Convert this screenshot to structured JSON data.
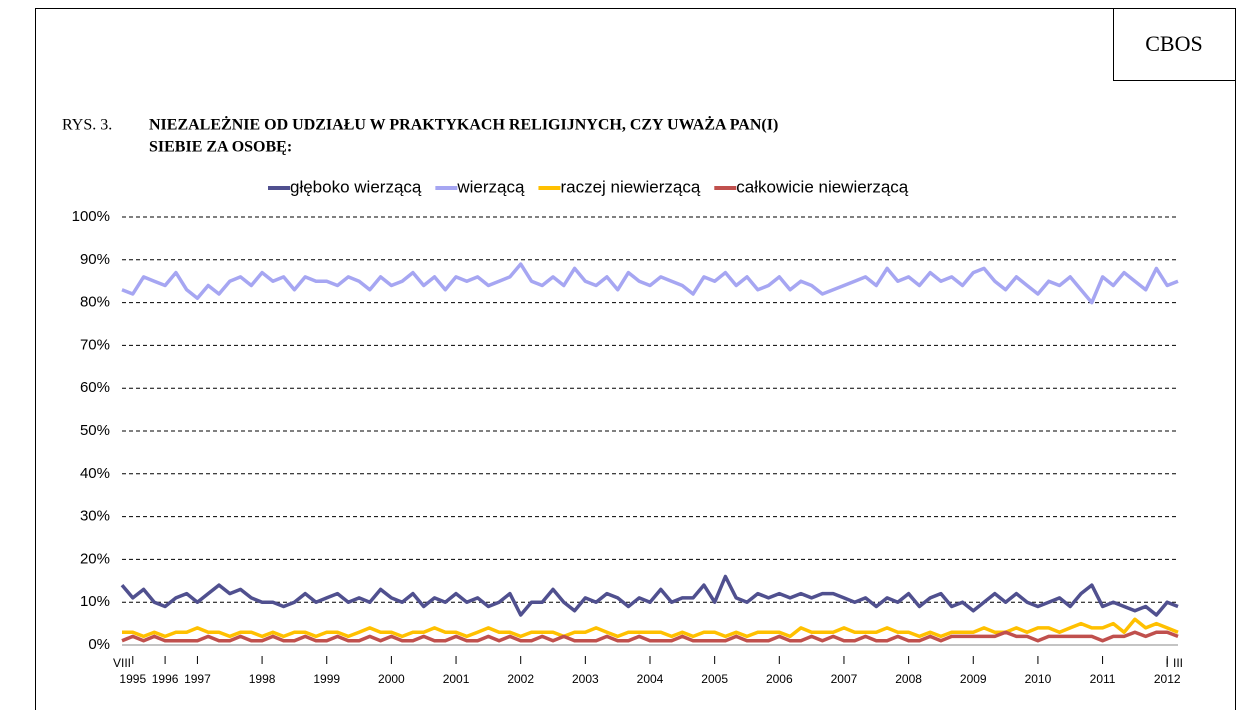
{
  "header": {
    "badge": "CBOS",
    "figure_number": "RYS. 3.",
    "title_line1": "NIEZALEŻNIE OD UDZIAŁU W PRAKTYKACH RELIGIJNYCH, CZY UWAŻA PAN(I)",
    "title_line2": "SIEBIE ZA OSOBĘ:"
  },
  "chart_data": {
    "type": "line",
    "categories": [
      null,
      "1995",
      null,
      null,
      "1996",
      null,
      null,
      "1997",
      null,
      null,
      null,
      null,
      null,
      "1998",
      null,
      null,
      null,
      null,
      null,
      "1999",
      null,
      null,
      null,
      null,
      null,
      "2000",
      null,
      null,
      null,
      null,
      null,
      "2001",
      null,
      null,
      null,
      null,
      null,
      "2002",
      null,
      null,
      null,
      null,
      null,
      "2003",
      null,
      null,
      null,
      null,
      null,
      "2004",
      null,
      null,
      null,
      null,
      null,
      "2005",
      null,
      null,
      null,
      null,
      null,
      "2006",
      null,
      null,
      null,
      null,
      null,
      "2007",
      null,
      null,
      null,
      null,
      null,
      "2008",
      null,
      null,
      null,
      null,
      null,
      "2009",
      null,
      null,
      null,
      null,
      null,
      "2010",
      null,
      null,
      null,
      null,
      null,
      "2011",
      null,
      null,
      null,
      null,
      null,
      "2012",
      null
    ],
    "month_labels": [
      "VIII",
      null,
      null,
      null,
      null,
      null,
      null,
      null,
      null,
      null,
      null,
      null,
      null,
      null,
      null,
      null,
      null,
      null,
      null,
      null,
      null,
      null,
      null,
      null,
      null,
      null,
      null,
      null,
      null,
      null,
      null,
      null,
      null,
      null,
      null,
      null,
      null,
      null,
      null,
      null,
      null,
      null,
      null,
      null,
      null,
      null,
      null,
      null,
      null,
      null,
      null,
      null,
      null,
      null,
      null,
      null,
      null,
      null,
      null,
      null,
      null,
      null,
      null,
      null,
      null,
      null,
      null,
      null,
      null,
      null,
      null,
      null,
      null,
      null,
      null,
      null,
      null,
      null,
      null,
      null,
      null,
      null,
      null,
      null,
      null,
      null,
      null,
      null,
      null,
      null,
      null,
      null,
      null,
      null,
      null,
      null,
      null,
      "I",
      "III"
    ],
    "series": [
      {
        "name": "głęboko wierzącą",
        "color": "#50508f",
        "values": [
          14,
          11,
          13,
          10,
          9,
          11,
          12,
          10,
          12,
          14,
          12,
          13,
          11,
          10,
          10,
          9,
          10,
          12,
          10,
          11,
          12,
          10,
          11,
          10,
          13,
          11,
          10,
          12,
          9,
          11,
          10,
          12,
          10,
          11,
          9,
          10,
          12,
          7,
          10,
          10,
          13,
          10,
          8,
          11,
          10,
          12,
          11,
          9,
          11,
          10,
          13,
          10,
          11,
          11,
          14,
          10,
          16,
          11,
          10,
          12,
          11,
          12,
          11,
          12,
          11,
          12,
          12,
          11,
          10,
          11,
          9,
          11,
          10,
          12,
          9,
          11,
          12,
          9,
          10,
          8,
          10,
          12,
          10,
          12,
          10,
          9,
          10,
          11,
          9,
          12,
          14,
          9,
          10,
          9,
          8,
          9,
          7,
          10,
          9
        ]
      },
      {
        "name": "wierzącą",
        "color": "#a6a6f2",
        "values": [
          83,
          82,
          86,
          85,
          84,
          87,
          83,
          81,
          84,
          82,
          85,
          86,
          84,
          87,
          85,
          86,
          83,
          86,
          85,
          85,
          84,
          86,
          85,
          83,
          86,
          84,
          85,
          87,
          84,
          86,
          83,
          86,
          85,
          86,
          84,
          85,
          86,
          89,
          85,
          84,
          86,
          84,
          88,
          85,
          84,
          86,
          83,
          87,
          85,
          84,
          86,
          85,
          84,
          82,
          86,
          85,
          87,
          84,
          86,
          83,
          84,
          86,
          83,
          85,
          84,
          82,
          83,
          84,
          85,
          86,
          84,
          88,
          85,
          86,
          84,
          87,
          85,
          86,
          84,
          87,
          88,
          85,
          83,
          86,
          84,
          82,
          85,
          84,
          86,
          83,
          80,
          86,
          84,
          87,
          85,
          83,
          88,
          84,
          85
        ]
      },
      {
        "name": "raczej niewierzącą",
        "color": "#ffc000",
        "values": [
          3,
          3,
          2,
          3,
          2,
          3,
          3,
          4,
          3,
          3,
          2,
          3,
          3,
          2,
          3,
          2,
          3,
          3,
          2,
          3,
          3,
          2,
          3,
          4,
          3,
          3,
          2,
          3,
          3,
          4,
          3,
          3,
          2,
          3,
          4,
          3,
          3,
          2,
          3,
          3,
          3,
          2,
          3,
          3,
          4,
          3,
          2,
          3,
          3,
          3,
          3,
          2,
          3,
          2,
          3,
          3,
          2,
          3,
          2,
          3,
          3,
          3,
          2,
          4,
          3,
          3,
          3,
          4,
          3,
          3,
          3,
          4,
          3,
          3,
          2,
          3,
          2,
          3,
          3,
          3,
          4,
          3,
          3,
          4,
          3,
          4,
          4,
          3,
          4,
          5,
          4,
          4,
          5,
          3,
          6,
          4,
          5,
          4,
          3
        ]
      },
      {
        "name": "całkowicie niewierzącą",
        "color": "#c0504d",
        "values": [
          1,
          2,
          1,
          2,
          1,
          1,
          1,
          1,
          2,
          1,
          1,
          2,
          1,
          1,
          2,
          1,
          1,
          2,
          1,
          1,
          2,
          1,
          1,
          2,
          1,
          2,
          1,
          1,
          2,
          1,
          1,
          2,
          1,
          1,
          2,
          1,
          2,
          1,
          1,
          2,
          1,
          2,
          1,
          1,
          1,
          2,
          1,
          1,
          2,
          1,
          1,
          1,
          2,
          1,
          1,
          1,
          1,
          2,
          1,
          1,
          1,
          2,
          1,
          1,
          2,
          1,
          2,
          1,
          1,
          2,
          1,
          1,
          2,
          1,
          1,
          2,
          1,
          2,
          2,
          2,
          2,
          2,
          3,
          2,
          2,
          1,
          2,
          2,
          2,
          2,
          2,
          1,
          2,
          2,
          3,
          2,
          3,
          3,
          2
        ]
      }
    ],
    "ylim": [
      0,
      100
    ],
    "yticks": [
      {
        "value": 0,
        "label": "0%"
      },
      {
        "value": 10,
        "label": "10%"
      },
      {
        "value": 20,
        "label": "20%"
      },
      {
        "value": 30,
        "label": "30%"
      },
      {
        "value": 40,
        "label": "40%"
      },
      {
        "value": 50,
        "label": "50%"
      },
      {
        "value": 60,
        "label": "60%"
      },
      {
        "value": 70,
        "label": "70%"
      },
      {
        "value": 80,
        "label": "80%"
      },
      {
        "value": 90,
        "label": "90%"
      },
      {
        "value": 100,
        "label": "100%"
      }
    ],
    "grid": true,
    "legend": "top"
  }
}
